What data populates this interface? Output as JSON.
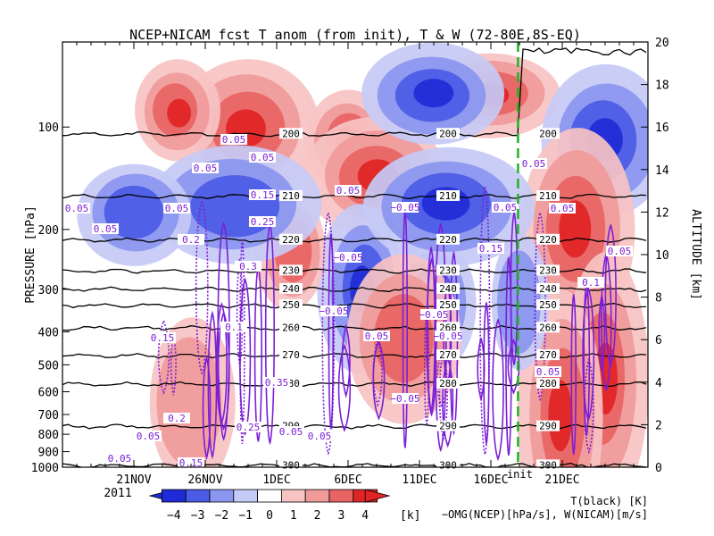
{
  "chart_data": {
    "type": "heatmap",
    "title": "NCEP+NICAM_fcst T_anom (from init), T & W  (72-80E,8S-EQ)",
    "ylabel": "PRESSURE [hPa]",
    "y2label": "ALTITUDE [km]",
    "xlabel": "",
    "x_ticks": [
      "21NOV",
      "26NOV",
      "1DEC",
      "6DEC",
      "11DEC",
      "16DEC",
      "21DEC"
    ],
    "x_tick_days": [
      5,
      10,
      15,
      20,
      25,
      30,
      35
    ],
    "x_day_range": [
      0,
      41
    ],
    "year_label": "2011",
    "init_label": "init",
    "init_day": 31.9,
    "y_pressure_ticks": [
      100,
      200,
      300,
      400,
      500,
      600,
      700,
      800,
      900,
      1000
    ],
    "y_pressure_labels": [
      "100",
      "200",
      "300",
      "400",
      "500",
      "600",
      "700",
      "800",
      "900",
      "1000"
    ],
    "y_altitude_ticks": [
      0,
      2,
      4,
      6,
      8,
      10,
      12,
      14,
      16,
      18,
      20
    ],
    "y_altitude_labels": [
      "0",
      "2",
      "4",
      "6",
      "8",
      "10",
      "12",
      "14",
      "16",
      "18",
      "20"
    ],
    "colorbar": {
      "levels": [
        -4,
        -3,
        -2,
        -1,
        0,
        1,
        2,
        3,
        4
      ],
      "labels": [
        "−4",
        "−3",
        "−2",
        "−1",
        "0",
        "1",
        "2",
        "3",
        "4"
      ],
      "unit": "[k]",
      "colors": [
        "#1f2bd6",
        "#4b5be6",
        "#8a96ef",
        "#c5caf6",
        "#ffffff",
        "#f7c3c3",
        "#f09a9a",
        "#e86464",
        "#e02424"
      ]
    },
    "temperature_contours": {
      "levels_K": [
        200,
        210,
        220,
        230,
        240,
        250,
        260,
        270,
        280,
        290,
        300
      ],
      "labels": [
        "200",
        "210",
        "220",
        "230",
        "240",
        "250",
        "260",
        "270",
        "280",
        "290",
        "300"
      ],
      "pressure_hPa": [
        105,
        160,
        215,
        265,
        300,
        335,
        390,
        470,
        570,
        760,
        990
      ]
    },
    "omega_labels": [
      "0.05",
      "−0.05",
      "0.1",
      "0.15",
      "0.2",
      "0.25",
      "0.3",
      "0.35"
    ],
    "legend": {
      "temperature": "T(black) [K]",
      "omega": "−OMG(NCEP)[hPa/s], W(NICAM)[m/s]"
    },
    "colors": {
      "temperature_contour": "#000000",
      "omega_contour": "#7b1fd6",
      "init_line": "#22b322"
    }
  }
}
